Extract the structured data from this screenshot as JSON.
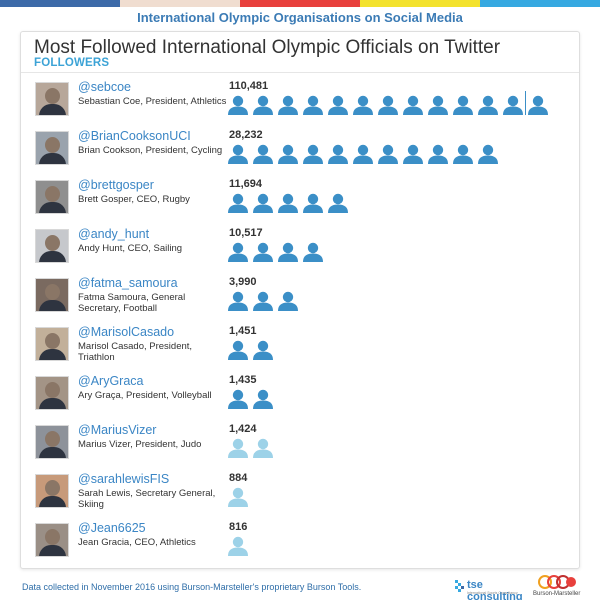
{
  "header": {
    "title": "International Olympic Organisations on Social Media",
    "bar_colors": [
      "#3c6aa8",
      "#f0ddd0",
      "#e8403c",
      "#f3e22d",
      "#36a9e1"
    ]
  },
  "card": {
    "title": "Most Followed International Olympic Officials on Twitter",
    "subtitle": "FOLLOWERS"
  },
  "icon_colors": {
    "dark": "#3b8fc7",
    "light": "#9dd2e8"
  },
  "chart_data": {
    "type": "bar",
    "title": "Most Followed International Olympic Officials on Twitter",
    "ylabel": "FOLLOWERS",
    "unit": "one person icon ≈ 8,500 followers",
    "rows": [
      {
        "handle": "@sebcoe",
        "name": "Sebastian Coe, President, Athletics",
        "value": 110481,
        "display": "110,481",
        "icons": 13,
        "light": false
      },
      {
        "handle": "@BrianCooksonUCI",
        "name": "Brian Cookson, President, Cycling",
        "value": 28232,
        "display": "28,232",
        "icons": 11,
        "light": false
      },
      {
        "handle": "@brettgosper",
        "name": "Brett Gosper, CEO, Rugby",
        "value": 11694,
        "display": "11,694",
        "icons": 5,
        "light": false
      },
      {
        "handle": "@andy_hunt",
        "name": "Andy Hunt, CEO, Sailing",
        "value": 10517,
        "display": "10,517",
        "icons": 4,
        "light": false
      },
      {
        "handle": "@fatma_samoura",
        "name": "Fatma Samoura, General Secretary, Football",
        "value": 3990,
        "display": "3,990",
        "icons": 3,
        "light": false
      },
      {
        "handle": "@MarisolCasado",
        "name": "Marisol Casado, President, Triathlon",
        "value": 1451,
        "display": "1,451",
        "icons": 2,
        "light": false
      },
      {
        "handle": "@AryGraca",
        "name": "Ary Graça, President, Volleyball",
        "value": 1435,
        "display": "1,435",
        "icons": 2,
        "light": false
      },
      {
        "handle": "@MariusVizer",
        "name": "Marius Vizer, President, Judo",
        "value": 1424,
        "display": "1,424",
        "icons": 2,
        "light": true
      },
      {
        "handle": "@sarahlewisFIS",
        "name": "Sarah Lewis, Secretary General, Skiing",
        "value": 884,
        "display": "884",
        "icons": 1,
        "light": true
      },
      {
        "handle": "@Jean6625",
        "name": "Jean Gracia, CEO, Athletics",
        "value": 816,
        "display": "816",
        "icons": 1,
        "light": true
      }
    ]
  },
  "footer": {
    "note": "Data collected in November 2016 using Burson-Marsteller's proprietary Burson Tools.",
    "logo_tse": "tse consulting",
    "logo_tse_tag": "International Sports Consultancy",
    "logo_bm": "Burson-Marsteller"
  }
}
